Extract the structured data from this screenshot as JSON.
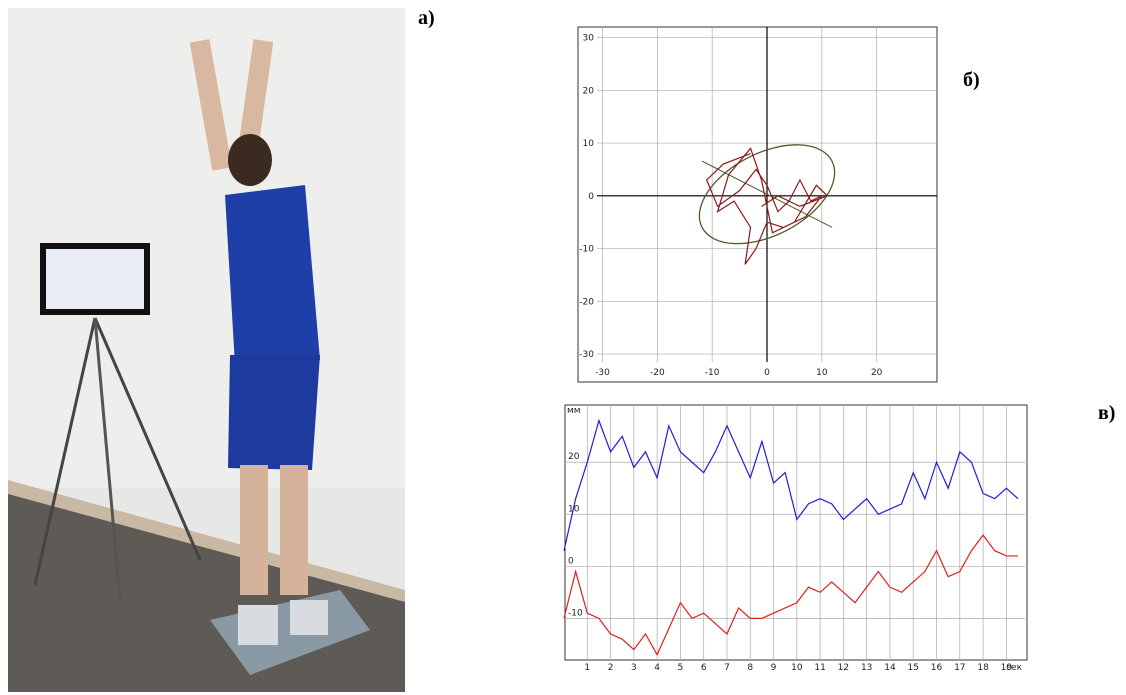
{
  "panel_labels": {
    "a": "а)",
    "b": "б)",
    "v": "в)"
  },
  "chart_data": [
    {
      "type": "line",
      "zero_axes": true,
      "grid": true,
      "xlim": [
        -31,
        31
      ],
      "ylim": [
        -31.5,
        32
      ],
      "xticks": [
        -30,
        -20,
        -10,
        0,
        10,
        20
      ],
      "yticks": [
        -30,
        -20,
        -10,
        0,
        10,
        20,
        30
      ],
      "ellipse": {
        "cx": 0,
        "cy": 0.3,
        "rx": 13.3,
        "ry": 7.8,
        "angle": -27,
        "color": "#4f5b2e"
      },
      "series": [
        {
          "color": "#8b1a1a",
          "x": [
            -3,
            -8,
            -11,
            -9,
            -5,
            -2,
            0,
            2,
            4,
            6,
            8,
            10,
            7,
            3,
            0,
            -2,
            -4,
            -3,
            -6,
            -9,
            -7,
            -3,
            -1,
            1,
            5,
            9,
            11,
            6,
            2,
            -1
          ],
          "values": [
            8,
            6,
            3,
            -2,
            1,
            5,
            2,
            -3,
            -1,
            3,
            -1,
            0,
            -4,
            -6,
            -5,
            -10,
            -13,
            -6,
            -1,
            -3,
            4,
            9,
            3,
            -7,
            -5,
            2,
            0,
            -2,
            0,
            -2
          ]
        }
      ]
    },
    {
      "type": "line",
      "grid": true,
      "x_label": "сек",
      "y_label": "мм",
      "xlim": [
        0,
        19.8
      ],
      "ylim": [
        -18,
        31
      ],
      "xticks": [
        1,
        2,
        3,
        4,
        5,
        6,
        7,
        8,
        9,
        10,
        11,
        12,
        13,
        14,
        15,
        16,
        17,
        18,
        19
      ],
      "yticks": [
        -10,
        0,
        10,
        20
      ],
      "x": [
        0,
        0.5,
        1,
        1.5,
        2,
        2.5,
        3,
        3.5,
        4,
        4.5,
        5,
        5.5,
        6,
        6.5,
        7,
        7.5,
        8,
        8.5,
        9,
        9.5,
        10,
        10.5,
        11,
        11.5,
        12,
        12.5,
        13,
        13.5,
        14,
        14.5,
        15,
        15.5,
        16,
        16.5,
        17,
        17.5,
        18,
        18.5,
        19,
        19.5
      ],
      "series": [
        {
          "color": "#1f1fd6",
          "values": [
            3,
            13,
            20,
            28,
            22,
            25,
            19,
            22,
            17,
            27,
            22,
            20,
            18,
            22,
            27,
            22,
            17,
            24,
            16,
            18,
            9,
            12,
            13,
            12,
            9,
            11,
            13,
            10,
            11,
            12,
            18,
            13,
            20,
            15,
            22,
            20,
            14,
            13,
            15,
            13
          ]
        },
        {
          "color": "#e02020",
          "values": [
            -10,
            -1,
            -9,
            -10,
            -13,
            -14,
            -16,
            -13,
            -17,
            -12,
            -7,
            -10,
            -9,
            -11,
            -13,
            -8,
            -10,
            -10,
            -9,
            -8,
            -7,
            -4,
            -5,
            -3,
            -5,
            -7,
            -4,
            -1,
            -4,
            -5,
            -3,
            -1,
            3,
            -2,
            -1,
            3,
            6,
            3,
            2,
            2
          ]
        }
      ]
    }
  ]
}
